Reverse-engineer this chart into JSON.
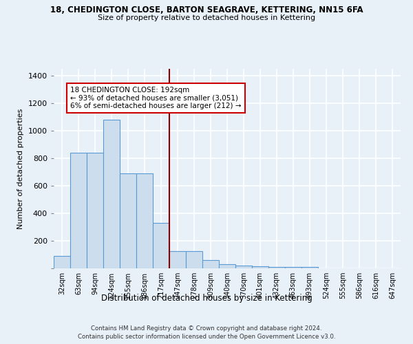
{
  "title_line1": "18, CHEDINGTON CLOSE, BARTON SEAGRAVE, KETTERING, NN15 6FA",
  "title_line2": "Size of property relative to detached houses in Kettering",
  "xlabel": "Distribution of detached houses by size in Kettering",
  "ylabel": "Number of detached properties",
  "categories": [
    "32sqm",
    "63sqm",
    "94sqm",
    "124sqm",
    "155sqm",
    "186sqm",
    "217sqm",
    "247sqm",
    "278sqm",
    "309sqm",
    "340sqm",
    "370sqm",
    "401sqm",
    "432sqm",
    "463sqm",
    "493sqm",
    "524sqm",
    "555sqm",
    "586sqm",
    "616sqm",
    "647sqm"
  ],
  "values": [
    90,
    840,
    840,
    1080,
    690,
    690,
    330,
    125,
    125,
    60,
    30,
    20,
    15,
    10,
    10,
    10,
    0,
    0,
    0,
    0,
    0
  ],
  "bar_color": "#ccdded",
  "bar_edge_color": "#5b9bd5",
  "vline_x": 6.5,
  "vline_color": "#8b0000",
  "annotation_text": "18 CHEDINGTON CLOSE: 192sqm\n← 93% of detached houses are smaller (3,051)\n6% of semi-detached houses are larger (212) →",
  "annotation_box_color": "white",
  "annotation_box_edge": "#cc0000",
  "ylim": [
    0,
    1450
  ],
  "yticks": [
    0,
    200,
    400,
    600,
    800,
    1000,
    1200,
    1400
  ],
  "bg_color": "#e8f0f8",
  "grid_color": "white",
  "footer_line1": "Contains HM Land Registry data © Crown copyright and database right 2024.",
  "footer_line2": "Contains public sector information licensed under the Open Government Licence v3.0."
}
